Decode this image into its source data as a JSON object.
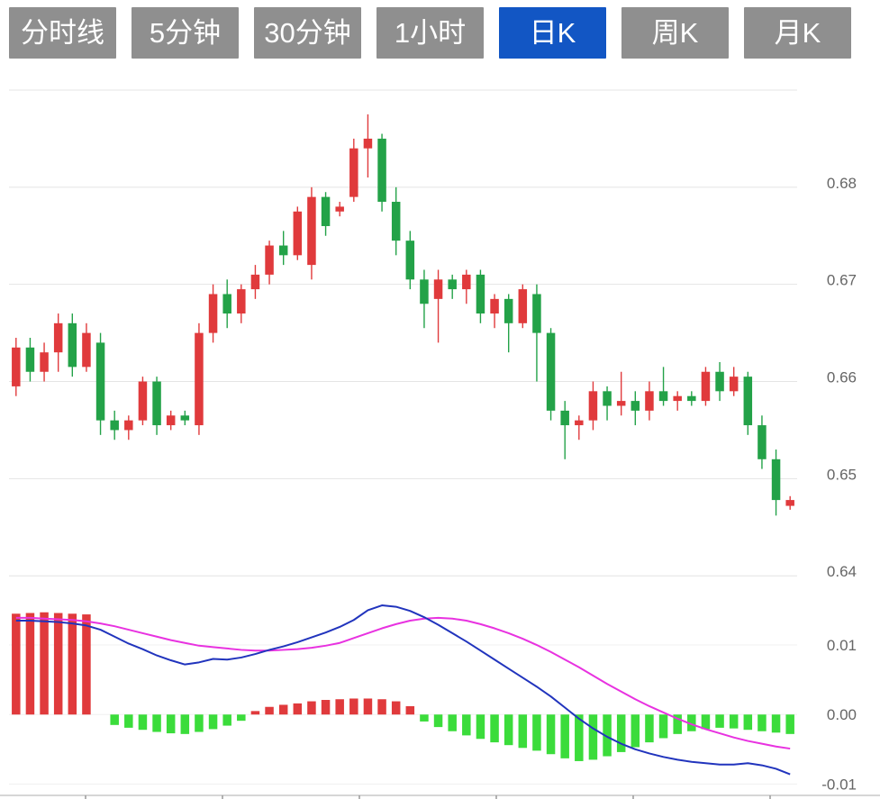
{
  "toolbar": {
    "buttons": [
      {
        "label": "分时线",
        "active": false
      },
      {
        "label": "5分钟",
        "active": false
      },
      {
        "label": "30分钟",
        "active": false
      },
      {
        "label": "1小时",
        "active": false
      },
      {
        "label": "日K",
        "active": true
      },
      {
        "label": "周K",
        "active": false
      },
      {
        "label": "月K",
        "active": false
      }
    ]
  },
  "colors": {
    "up": "#e03a3c",
    "down": "#23a248",
    "hist_up": "#e03a3c",
    "hist_down": "#3bdc3b",
    "dif_line": "#2134bd",
    "dea_line": "#e832e0",
    "grid": "#e4e4e4",
    "macd_grid": "#f0f0f0",
    "axis_text": "#666666",
    "bottom_axis": "#c9c9c9",
    "button_bg": "#8f8f8f",
    "button_active_bg": "#1256c4",
    "button_text": "#ffffff"
  },
  "chart_data": {
    "type": "candlestick+macd",
    "title": "",
    "timeframe_selected": "日K",
    "price_axis": {
      "ticks": [
        0.68,
        0.67,
        0.66,
        0.65,
        0.64
      ],
      "range": [
        0.639,
        0.69
      ]
    },
    "macd_axis": {
      "ticks": [
        0.01,
        0.0,
        -0.01
      ],
      "range": [
        -0.0115,
        0.017
      ]
    },
    "candles": [
      [
        0.6595,
        0.6645,
        0.6585,
        0.6635
      ],
      [
        0.6635,
        0.6645,
        0.66,
        0.661
      ],
      [
        0.661,
        0.664,
        0.66,
        0.663
      ],
      [
        0.663,
        0.667,
        0.661,
        0.666
      ],
      [
        0.666,
        0.667,
        0.6605,
        0.6615
      ],
      [
        0.6615,
        0.666,
        0.661,
        0.665
      ],
      [
        0.664,
        0.665,
        0.6545,
        0.656
      ],
      [
        0.656,
        0.657,
        0.654,
        0.655
      ],
      [
        0.655,
        0.6565,
        0.654,
        0.656
      ],
      [
        0.656,
        0.6605,
        0.6555,
        0.66
      ],
      [
        0.66,
        0.6605,
        0.6545,
        0.6555
      ],
      [
        0.6555,
        0.657,
        0.655,
        0.6565
      ],
      [
        0.6565,
        0.657,
        0.6555,
        0.656
      ],
      [
        0.6555,
        0.666,
        0.6545,
        0.665
      ],
      [
        0.665,
        0.67,
        0.664,
        0.669
      ],
      [
        0.669,
        0.6705,
        0.6655,
        0.667
      ],
      [
        0.667,
        0.67,
        0.666,
        0.6695
      ],
      [
        0.6695,
        0.672,
        0.6685,
        0.671
      ],
      [
        0.671,
        0.6745,
        0.67,
        0.674
      ],
      [
        0.674,
        0.6755,
        0.672,
        0.673
      ],
      [
        0.673,
        0.678,
        0.6725,
        0.6775
      ],
      [
        0.672,
        0.68,
        0.6705,
        0.679
      ],
      [
        0.679,
        0.6795,
        0.675,
        0.676
      ],
      [
        0.6775,
        0.6785,
        0.677,
        0.678
      ],
      [
        0.679,
        0.685,
        0.6785,
        0.684
      ],
      [
        0.684,
        0.6875,
        0.681,
        0.685
      ],
      [
        0.685,
        0.6855,
        0.6775,
        0.6785
      ],
      [
        0.6785,
        0.68,
        0.673,
        0.6745
      ],
      [
        0.6745,
        0.6755,
        0.6695,
        0.6705
      ],
      [
        0.6705,
        0.6715,
        0.6655,
        0.668
      ],
      [
        0.6685,
        0.6715,
        0.664,
        0.6705
      ],
      [
        0.6705,
        0.671,
        0.6685,
        0.6695
      ],
      [
        0.6695,
        0.6715,
        0.668,
        0.671
      ],
      [
        0.671,
        0.6715,
        0.666,
        0.667
      ],
      [
        0.667,
        0.669,
        0.6655,
        0.6685
      ],
      [
        0.6685,
        0.669,
        0.663,
        0.666
      ],
      [
        0.666,
        0.67,
        0.6655,
        0.6695
      ],
      [
        0.669,
        0.67,
        0.66,
        0.665
      ],
      [
        0.665,
        0.6655,
        0.656,
        0.657
      ],
      [
        0.657,
        0.658,
        0.652,
        0.6555
      ],
      [
        0.6555,
        0.6565,
        0.654,
        0.656
      ],
      [
        0.656,
        0.66,
        0.655,
        0.659
      ],
      [
        0.659,
        0.6595,
        0.656,
        0.6575
      ],
      [
        0.6575,
        0.661,
        0.6565,
        0.658
      ],
      [
        0.658,
        0.659,
        0.6555,
        0.657
      ],
      [
        0.657,
        0.66,
        0.656,
        0.659
      ],
      [
        0.659,
        0.6615,
        0.6575,
        0.658
      ],
      [
        0.658,
        0.659,
        0.657,
        0.6585
      ],
      [
        0.6585,
        0.659,
        0.6575,
        0.658
      ],
      [
        0.658,
        0.6615,
        0.6575,
        0.661
      ],
      [
        0.661,
        0.662,
        0.658,
        0.659
      ],
      [
        0.659,
        0.6615,
        0.6585,
        0.6605
      ],
      [
        0.6605,
        0.661,
        0.6545,
        0.6555
      ],
      [
        0.6555,
        0.6565,
        0.651,
        0.652
      ],
      [
        0.652,
        0.653,
        0.6462,
        0.6478
      ],
      [
        0.6472,
        0.6482,
        0.6468,
        0.6478
      ]
    ],
    "macd": {
      "dif": [
        0.0135,
        0.0135,
        0.0134,
        0.0133,
        0.0131,
        0.0128,
        0.0122,
        0.0112,
        0.0102,
        0.0094,
        0.0085,
        0.0078,
        0.0072,
        0.0075,
        0.008,
        0.0079,
        0.0082,
        0.0087,
        0.0093,
        0.0098,
        0.0104,
        0.0111,
        0.0118,
        0.0126,
        0.0136,
        0.015,
        0.0157,
        0.0155,
        0.0149,
        0.014,
        0.0129,
        0.0117,
        0.0105,
        0.0092,
        0.0079,
        0.0066,
        0.0053,
        0.004,
        0.0026,
        0.001,
        -0.0006,
        -0.002,
        -0.0032,
        -0.0042,
        -0.005,
        -0.0056,
        -0.0061,
        -0.0065,
        -0.0068,
        -0.007,
        -0.0072,
        -0.0072,
        -0.007,
        -0.0073,
        -0.0078,
        -0.0086
      ],
      "dea": [
        0.0139,
        0.0139,
        0.0138,
        0.0137,
        0.0136,
        0.0134,
        0.0131,
        0.0127,
        0.0122,
        0.0117,
        0.0112,
        0.0107,
        0.0103,
        0.0099,
        0.0097,
        0.0095,
        0.0093,
        0.0092,
        0.0092,
        0.0093,
        0.0094,
        0.0096,
        0.0099,
        0.0103,
        0.011,
        0.0117,
        0.0124,
        0.013,
        0.0135,
        0.0138,
        0.0139,
        0.0138,
        0.0135,
        0.013,
        0.0124,
        0.0117,
        0.0109,
        0.01,
        0.009,
        0.0079,
        0.0068,
        0.0056,
        0.0044,
        0.0033,
        0.0022,
        0.0012,
        0.0003,
        -0.0006,
        -0.0014,
        -0.0021,
        -0.0027,
        -0.0033,
        -0.0038,
        -0.0042,
        -0.0046,
        -0.0049
      ],
      "hist": [
        0.0145,
        0.0146,
        0.0147,
        0.0146,
        0.0145,
        0.0144,
        0,
        -0.0015,
        -0.0019,
        -0.0022,
        -0.0025,
        -0.0027,
        -0.0028,
        -0.0025,
        -0.0021,
        -0.0016,
        -0.0009,
        0.0005,
        0.0011,
        0.0014,
        0.0016,
        0.0019,
        0.0021,
        0.0022,
        0.0023,
        0.0023,
        0.0022,
        0.0019,
        0.0012,
        -0.001,
        -0.0018,
        -0.0024,
        -0.003,
        -0.0035,
        -0.004,
        -0.0044,
        -0.0048,
        -0.0052,
        -0.0057,
        -0.0063,
        -0.0067,
        -0.0065,
        -0.006,
        -0.0054,
        -0.0047,
        -0.004,
        -0.0034,
        -0.0028,
        -0.0024,
        -0.0021,
        -0.0019,
        -0.002,
        -0.0022,
        -0.0024,
        -0.0026,
        -0.0028
      ]
    }
  }
}
